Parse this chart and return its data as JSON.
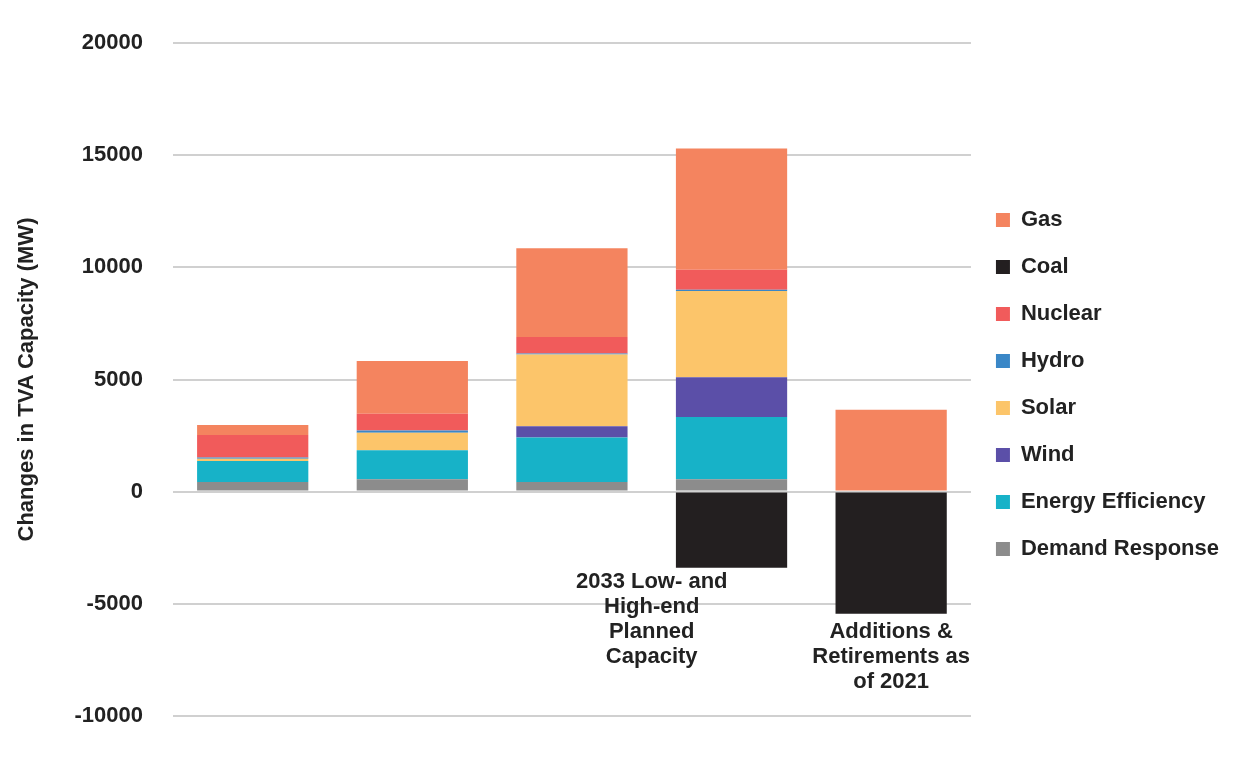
{
  "chart_data": {
    "type": "bar",
    "ylabel": "Changes in TVA Capacity (MW)",
    "categories": [
      null,
      null,
      null,
      null,
      null
    ],
    "stacked": true,
    "series": [
      {
        "name": "Demand Response",
        "color": "#8c8c8c",
        "values": [
          430,
          550,
          430,
          550,
          null
        ]
      },
      {
        "name": "Energy Efficiency",
        "color": "#17b2c8",
        "values": [
          940,
          1290,
          1980,
          2780,
          null
        ]
      },
      {
        "name": "Wind",
        "color": "#5b4fa8",
        "values": [
          null,
          null,
          510,
          1770,
          null
        ]
      },
      {
        "name": "Solar",
        "color": "#fcc56a",
        "values": [
          100,
          780,
          3190,
          3850,
          null
        ]
      },
      {
        "name": "Hydro",
        "color": "#3a87c7",
        "values": [
          50,
          100,
          50,
          50,
          null
        ]
      },
      {
        "name": "Nuclear",
        "color": "#f15b5b",
        "values": [
          1000,
          750,
          740,
          900,
          null
        ]
      },
      {
        "name": "Coal",
        "color": "#231f20",
        "values": [
          null,
          null,
          null,
          -3400,
          -5450
        ]
      },
      {
        "name": "Gas",
        "color": "#f4845f",
        "values": [
          450,
          2350,
          3950,
          5400,
          3650
        ]
      }
    ],
    "ylim": [
      -10000,
      20000
    ],
    "yticks": [
      -10000,
      -5000,
      0,
      5000,
      10000,
      15000,
      20000
    ],
    "grid": "y",
    "legend": "right",
    "annotations": [
      "2033 Low- and High-end Planned Capacity",
      "Additions & Retirements as of 2021"
    ]
  }
}
